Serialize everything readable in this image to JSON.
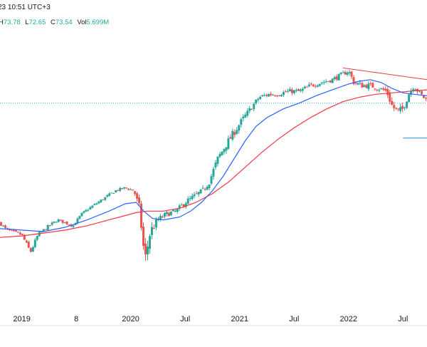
{
  "header": {
    "datetime": "23 10:51 UTC+3",
    "ohlc": {
      "h_label": "H",
      "h": "73.78",
      "l_label": "L",
      "l": "72.65",
      "c_label": "C",
      "c": "73.54",
      "vol_label": "Vol",
      "vol": "5.699M"
    }
  },
  "colors": {
    "up": "#26a69a",
    "down": "#ef5350",
    "ma_fast": "#2962ff",
    "ma_slow": "#f23645",
    "trendline": "#f23645",
    "hline": "#2196f3",
    "axis_text": "#131722"
  },
  "chart_data": {
    "type": "candlestick",
    "title": "",
    "xlabel": "",
    "ylabel": "",
    "x_ticks": [
      "2019",
      "8",
      "2020",
      "Jul",
      "2021",
      "Jul",
      "2022",
      "Jul"
    ],
    "x_tick_positions": [
      0.0,
      0.5,
      1.0,
      1.5,
      2.0,
      2.5,
      3.0,
      3.5
    ],
    "x_range": [
      -0.2,
      3.72
    ],
    "y_range": [
      0,
      100
    ],
    "legend": "none",
    "grid": false,
    "price_path": [
      [
        -0.2,
        33,
        0.4
      ],
      [
        -0.15,
        31,
        0.3
      ],
      [
        -0.1,
        30,
        0.4
      ],
      [
        0.0,
        29,
        0.3
      ],
      [
        0.08,
        23,
        0.5
      ],
      [
        0.15,
        29,
        0.4
      ],
      [
        0.25,
        32,
        0.3
      ],
      [
        0.33,
        34,
        0.3
      ],
      [
        0.4,
        33,
        0.3
      ],
      [
        0.47,
        32,
        0.3
      ],
      [
        0.55,
        36,
        0.3
      ],
      [
        0.62,
        38,
        0.3
      ],
      [
        0.7,
        40,
        0.3
      ],
      [
        0.78,
        42,
        0.3
      ],
      [
        0.86,
        44,
        0.3
      ],
      [
        0.95,
        45,
        0.3
      ],
      [
        1.03,
        44,
        0.3
      ],
      [
        1.08,
        38,
        1.0
      ],
      [
        1.13,
        20,
        1.4
      ],
      [
        1.18,
        30,
        1.2
      ],
      [
        1.25,
        34,
        0.7
      ],
      [
        1.33,
        36,
        0.6
      ],
      [
        1.42,
        37,
        0.6
      ],
      [
        1.5,
        40,
        0.6
      ],
      [
        1.58,
        42,
        0.6
      ],
      [
        1.66,
        44,
        0.6
      ],
      [
        1.72,
        47,
        0.7
      ],
      [
        1.8,
        55,
        0.8
      ],
      [
        1.88,
        60,
        0.8
      ],
      [
        1.95,
        64,
        0.8
      ],
      [
        2.02,
        68,
        0.7
      ],
      [
        2.1,
        72,
        0.6
      ],
      [
        2.18,
        76,
        0.5
      ],
      [
        2.27,
        77,
        0.5
      ],
      [
        2.35,
        77,
        0.5
      ],
      [
        2.45,
        78,
        0.5
      ],
      [
        2.55,
        78,
        0.5
      ],
      [
        2.65,
        80,
        0.5
      ],
      [
        2.75,
        81,
        0.5
      ],
      [
        2.85,
        82,
        0.5
      ],
      [
        2.95,
        84,
        0.5
      ],
      [
        3.0,
        85,
        0.5
      ],
      [
        3.05,
        81,
        0.7
      ],
      [
        3.12,
        80,
        0.6
      ],
      [
        3.2,
        80,
        0.6
      ],
      [
        3.28,
        79,
        0.6
      ],
      [
        3.35,
        78,
        0.7
      ],
      [
        3.4,
        73,
        0.9
      ],
      [
        3.45,
        71,
        0.8
      ],
      [
        3.5,
        72,
        0.8
      ],
      [
        3.55,
        77,
        0.7
      ],
      [
        3.6,
        80,
        0.6
      ],
      [
        3.66,
        77,
        0.6
      ],
      [
        3.72,
        75,
        0.6
      ]
    ],
    "ma_fast": [
      [
        -0.2,
        31
      ],
      [
        0.0,
        30.5
      ],
      [
        0.2,
        30
      ],
      [
        0.4,
        31.5
      ],
      [
        0.6,
        34
      ],
      [
        0.8,
        37
      ],
      [
        0.95,
        39.5
      ],
      [
        1.05,
        40
      ],
      [
        1.12,
        37
      ],
      [
        1.2,
        34.5
      ],
      [
        1.3,
        34
      ],
      [
        1.45,
        35
      ],
      [
        1.55,
        37
      ],
      [
        1.65,
        40
      ],
      [
        1.75,
        44
      ],
      [
        1.85,
        49
      ],
      [
        1.95,
        55
      ],
      [
        2.05,
        61
      ],
      [
        2.15,
        66
      ],
      [
        2.25,
        69
      ],
      [
        2.4,
        72
      ],
      [
        2.55,
        74
      ],
      [
        2.7,
        76.5
      ],
      [
        2.85,
        78.5
      ],
      [
        3.0,
        80.5
      ],
      [
        3.1,
        81.5
      ],
      [
        3.2,
        82
      ],
      [
        3.3,
        81
      ],
      [
        3.4,
        79
      ],
      [
        3.5,
        77.5
      ],
      [
        3.6,
        77
      ],
      [
        3.72,
        76.5
      ]
    ],
    "ma_slow": [
      [
        -0.2,
        28
      ],
      [
        0.0,
        28.5
      ],
      [
        0.2,
        29.5
      ],
      [
        0.4,
        30.5
      ],
      [
        0.6,
        32
      ],
      [
        0.8,
        34
      ],
      [
        0.95,
        35.5
      ],
      [
        1.05,
        36.5
      ],
      [
        1.15,
        37
      ],
      [
        1.3,
        37
      ],
      [
        1.45,
        38
      ],
      [
        1.6,
        40
      ],
      [
        1.75,
        43
      ],
      [
        1.9,
        47
      ],
      [
        2.05,
        52
      ],
      [
        2.2,
        57
      ],
      [
        2.35,
        61.5
      ],
      [
        2.5,
        65.5
      ],
      [
        2.65,
        69
      ],
      [
        2.8,
        72
      ],
      [
        2.95,
        74.5
      ],
      [
        3.1,
        76
      ],
      [
        3.25,
        77
      ],
      [
        3.4,
        77.5
      ],
      [
        3.55,
        78
      ],
      [
        3.72,
        78.5
      ]
    ],
    "trendline": [
      [
        2.95,
        86
      ],
      [
        3.72,
        82
      ]
    ],
    "hline_dotted": 74,
    "hline_short": {
      "y": 62,
      "x_from": 3.5,
      "x_to": 3.72
    }
  }
}
